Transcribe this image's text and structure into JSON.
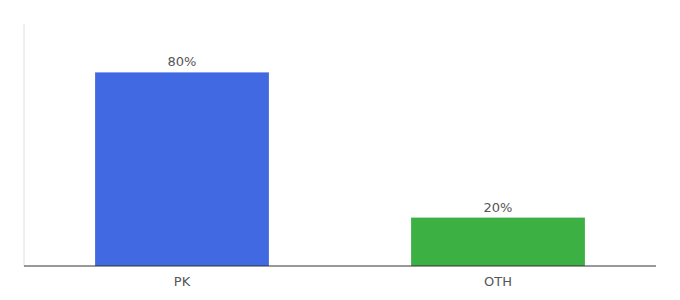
{
  "chart_data": {
    "type": "bar",
    "categories": [
      "PK",
      "OTH"
    ],
    "values": [
      80,
      20
    ],
    "value_labels": [
      "80%",
      "20%"
    ],
    "colors": [
      "#4169E1",
      "#3CB043"
    ],
    "ylim": [
      0,
      100
    ],
    "data_labels": true,
    "tick_labels": "x"
  }
}
